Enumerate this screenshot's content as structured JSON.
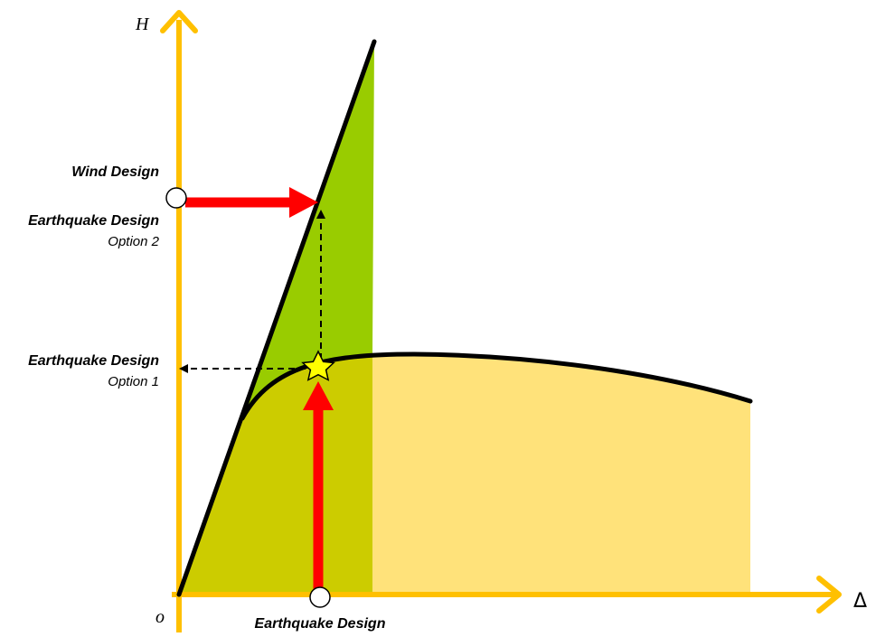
{
  "axes": {
    "y_label": "H",
    "x_label": "Δ",
    "origin_label": "o"
  },
  "labels": {
    "wind_design": "Wind Design",
    "eq_option2_title": "Earthquake Design",
    "eq_option2_sub": "Option 2",
    "eq_option1_title": "Earthquake Design",
    "eq_option1_sub": "Option 1",
    "eq_design_bottom": "Earthquake Design"
  },
  "colors": {
    "axis": "#FFC000",
    "elastic_region": "#99CC00",
    "inelastic_region": "#FFE27A",
    "overlap_region": "#CCCC00",
    "arrow_red": "#FF0000",
    "star": "#FFFF00"
  },
  "icons": {
    "star": "star-icon",
    "marker": "circle-marker-icon"
  }
}
